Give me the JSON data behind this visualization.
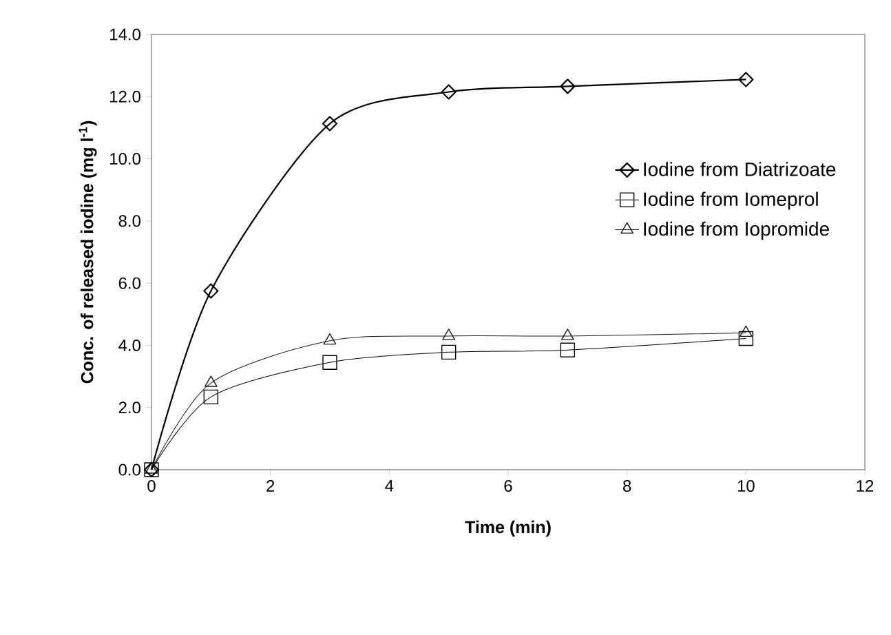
{
  "chart_data": {
    "type": "line",
    "xlabel": "Time (min)",
    "ylabel": "Conc. of released iodine (mg l$^{-1}$)",
    "x": [
      0,
      1,
      3,
      5,
      7,
      10
    ],
    "series": [
      {
        "name": "Iodine from Diatrizoate",
        "color": "#000000",
        "marker": "diamond",
        "values": [
          0,
          5.75,
          11.13,
          12.15,
          12.33,
          12.55
        ]
      },
      {
        "name": "Iodine from Iomeprol",
        "color": "#000000",
        "marker": "square",
        "values": [
          0,
          2.34,
          3.45,
          3.78,
          3.85,
          4.22
        ]
      },
      {
        "name": "Iodine from Iopromide",
        "color": "#1a1a1a",
        "marker": "triangle",
        "values": [
          0,
          2.79,
          4.15,
          4.3,
          4.3,
          4.4
        ]
      }
    ],
    "xlim": [
      0,
      12
    ],
    "xticks": [
      0,
      2,
      4,
      6,
      8,
      10,
      12
    ],
    "ylim": [
      0,
      14
    ],
    "yticks": [
      {
        "value": 0,
        "label": "0.0"
      },
      {
        "value": 2,
        "label": "2.0"
      },
      {
        "value": 4,
        "label": "4.0"
      },
      {
        "value": 6,
        "label": "6.0"
      },
      {
        "value": 8,
        "label": "8.0"
      },
      {
        "value": 10,
        "label": "10.0"
      },
      {
        "value": 12,
        "label": "12.0"
      },
      {
        "value": 14,
        "label": "14.0"
      }
    ],
    "grid": false,
    "legend": "right",
    "line_style": "solid"
  }
}
